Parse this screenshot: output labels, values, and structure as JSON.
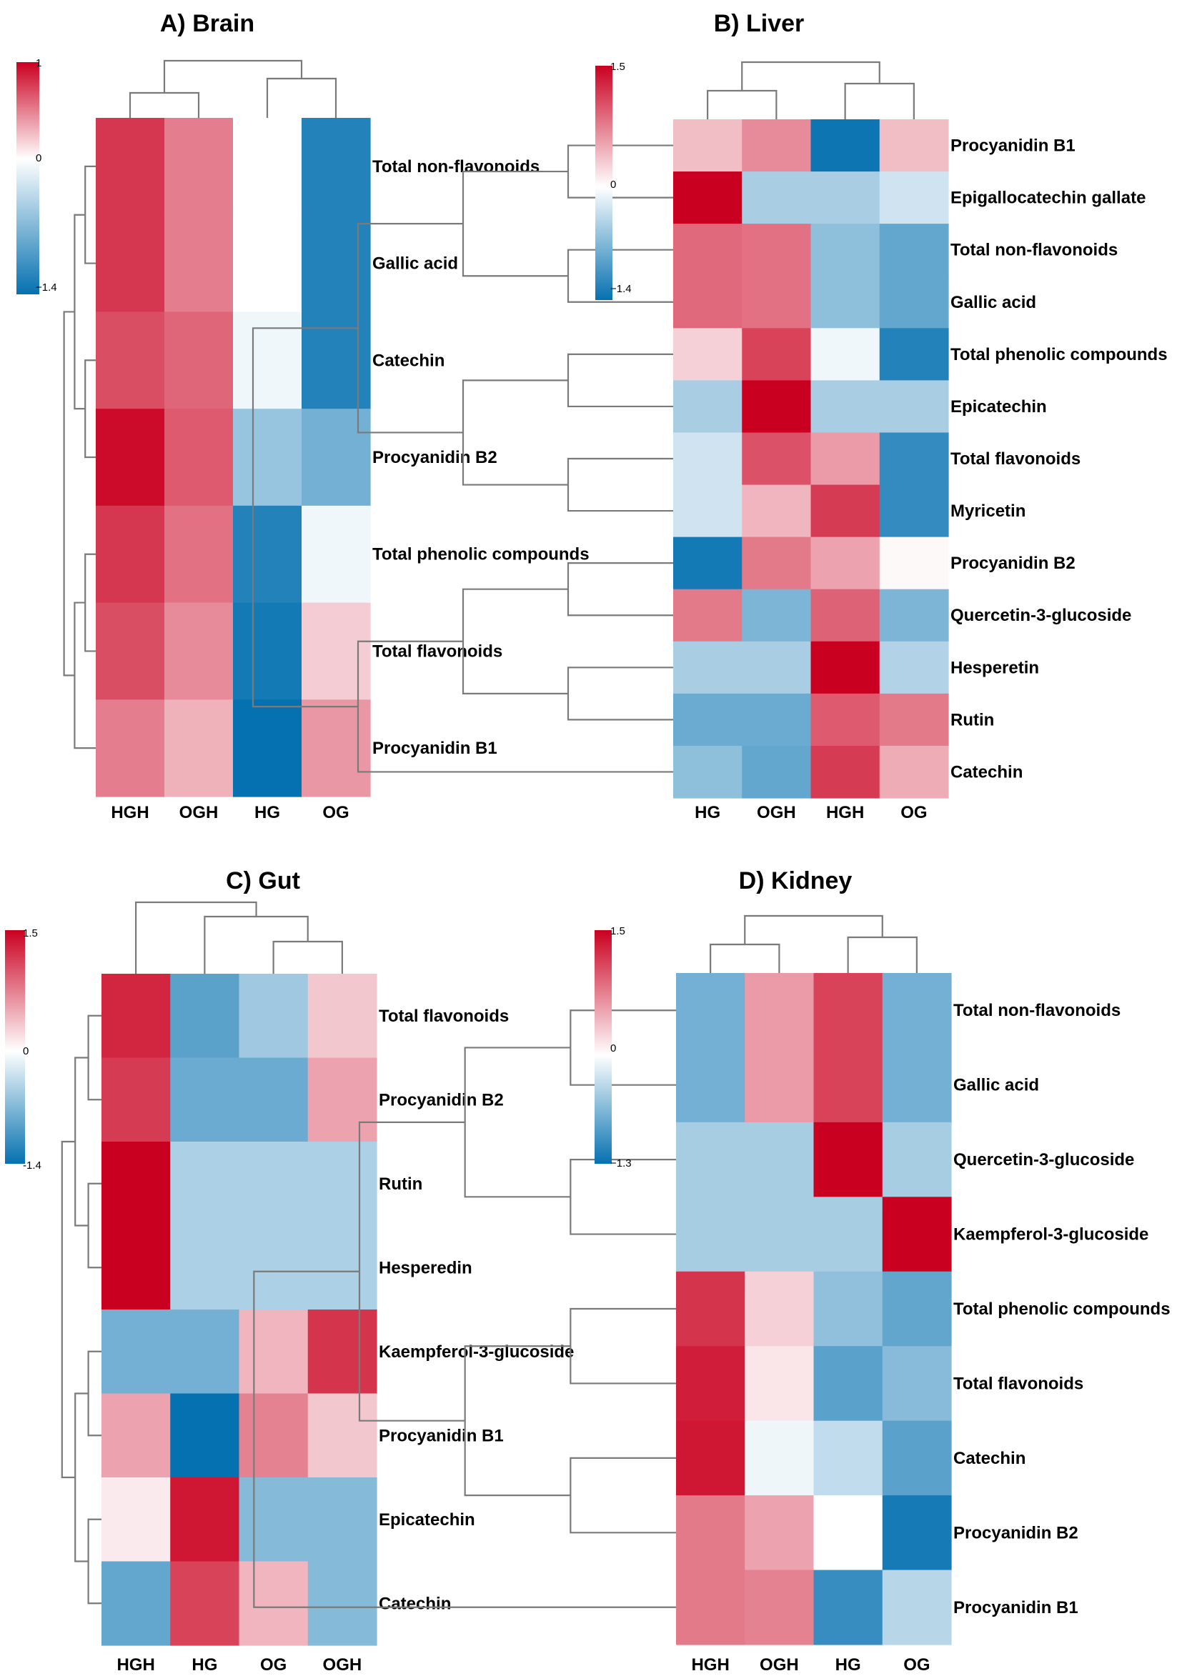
{
  "chart_data": [
    {
      "type": "heatmap",
      "title": "A) Brain",
      "columns": [
        "HGH",
        "OGH",
        "HG",
        "OG"
      ],
      "rows": [
        "Total non-flavonoids",
        "Gallic acid",
        "Catechin",
        "Procyanidin B2",
        "Total phenolic compounds",
        "Total flavonoids",
        "Procyanidin B1"
      ],
      "values": [
        [
          0.75,
          0.45,
          0.0,
          -1.2
        ],
        [
          0.75,
          0.45,
          0.0,
          -1.2
        ],
        [
          0.65,
          0.55,
          -0.05,
          -1.2
        ],
        [
          0.95,
          0.6,
          -0.5,
          -0.7
        ],
        [
          0.75,
          0.5,
          -1.2,
          -0.05
        ],
        [
          0.65,
          0.4,
          -1.3,
          0.15
        ],
        [
          0.45,
          0.25,
          -1.4,
          0.35
        ]
      ],
      "colorbar": {
        "min": -1.4,
        "max": 1,
        "mid": 0,
        "labels": [
          "1",
          "0",
          "−1.4"
        ]
      }
    },
    {
      "type": "heatmap",
      "title": "B) Liver",
      "columns": [
        "HG",
        "OGH",
        "HGH",
        "OG"
      ],
      "rows": [
        "Procyanidin B1",
        "Epigallocatechin gallate",
        "Total non-flavonoids",
        "Gallic acid",
        "Total phenolic compounds",
        "Epicatechin",
        "Total flavonoids",
        "Myricetin",
        "Procyanidin B2",
        "Quercetin-3-glucoside",
        "Hesperetin",
        "Rutin",
        "Catechin"
      ],
      "values": [
        [
          0.3,
          0.6,
          -1.35,
          0.3
        ],
        [
          1.5,
          -0.4,
          -0.4,
          -0.2
        ],
        [
          0.8,
          0.75,
          -0.55,
          -0.8
        ],
        [
          0.8,
          0.75,
          -0.55,
          -0.8
        ],
        [
          0.2,
          1.05,
          -0.05,
          -1.2
        ],
        [
          -0.4,
          1.5,
          -0.4,
          -0.4
        ],
        [
          -0.2,
          0.95,
          0.5,
          -1.1
        ],
        [
          -0.2,
          0.35,
          1.1,
          -1.1
        ],
        [
          -1.3,
          0.7,
          0.45,
          0.02
        ],
        [
          0.7,
          -0.65,
          0.85,
          -0.65
        ],
        [
          -0.4,
          -0.4,
          1.5,
          -0.35
        ],
        [
          -0.75,
          -0.75,
          0.9,
          0.7
        ],
        [
          -0.55,
          -0.8,
          1.1,
          0.4
        ]
      ],
      "colorbar": {
        "min": -1.4,
        "max": 1.5,
        "mid": 0,
        "labels": [
          "1.5",
          "0",
          "−1.4"
        ]
      }
    },
    {
      "type": "heatmap",
      "title": "C) Gut",
      "columns": [
        "HGH",
        "HG",
        "OG",
        "OGH"
      ],
      "rows": [
        "Total flavonoids",
        "Procyanidin B2",
        "Rutin",
        "Hesperedin",
        "Kaempferol-3-glucoside",
        "Procyanidin B1",
        "Epicatechin",
        "Catechin"
      ],
      "values": [
        [
          1.25,
          -0.85,
          -0.45,
          0.25
        ],
        [
          1.1,
          -0.75,
          -0.75,
          0.45
        ],
        [
          1.5,
          -0.38,
          -0.38,
          -0.38
        ],
        [
          1.5,
          -0.38,
          -0.38,
          -0.38
        ],
        [
          -0.7,
          -0.7,
          0.35,
          1.15
        ],
        [
          0.45,
          -1.4,
          0.65,
          0.25
        ],
        [
          0.08,
          1.35,
          -0.6,
          -0.6
        ],
        [
          -0.8,
          1.05,
          0.35,
          -0.6
        ]
      ],
      "colorbar": {
        "min": -1.4,
        "max": 1.5,
        "mid": 0,
        "labels": [
          "1.5",
          "0",
          "-1.4"
        ]
      }
    },
    {
      "type": "heatmap",
      "title": "D) Kidney",
      "columns": [
        "HGH",
        "OGH",
        "HG",
        "OG"
      ],
      "rows": [
        "Total non-flavonoids",
        "Gallic acid",
        "Quercetin-3-glucoside",
        "Kaempferol-3-glucoside",
        "Total phenolic compounds",
        "Total flavonoids",
        "Catechin",
        "Procyanidin B2",
        "Procyanidin B1"
      ],
      "values": [
        [
          -0.65,
          0.5,
          1.05,
          -0.65
        ],
        [
          -0.65,
          0.5,
          1.05,
          -0.65
        ],
        [
          -0.38,
          -0.38,
          1.5,
          -0.38
        ],
        [
          -0.38,
          -0.38,
          -0.38,
          1.5
        ],
        [
          1.15,
          0.2,
          -0.5,
          -0.75
        ],
        [
          1.3,
          0.1,
          -0.8,
          -0.55
        ],
        [
          1.35,
          -0.05,
          -0.25,
          -0.8
        ],
        [
          0.7,
          0.45,
          0.0,
          -1.2
        ],
        [
          0.7,
          0.65,
          -1.0,
          -0.3
        ]
      ],
      "colorbar": {
        "min": -1.3,
        "max": 1.5,
        "mid": 0,
        "labels": [
          "1.5",
          "0",
          "−1.3"
        ]
      }
    }
  ]
}
